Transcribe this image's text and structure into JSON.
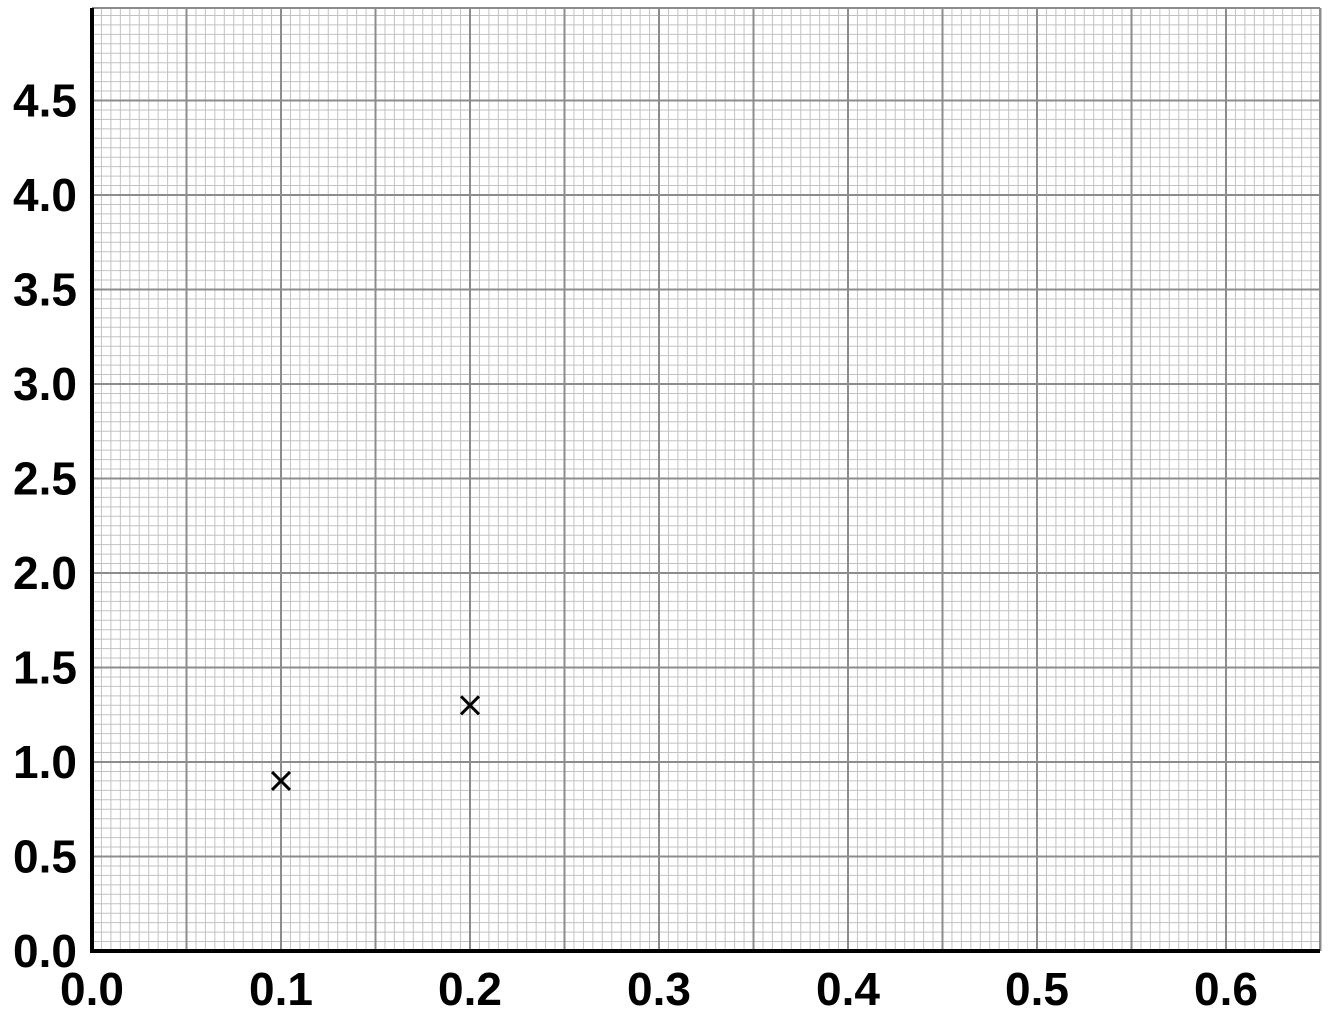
{
  "chart_data": {
    "type": "scatter",
    "title": "",
    "xlabel": "",
    "ylabel": "",
    "xlim": [
      0.0,
      0.65
    ],
    "ylim": [
      0.0,
      5.0
    ],
    "x_ticks": [
      "0.0",
      "0.1",
      "0.2",
      "0.3",
      "0.4",
      "0.5",
      "0.6"
    ],
    "y_ticks": [
      "0.0",
      "0.5",
      "1.0",
      "1.5",
      "2.0",
      "2.5",
      "3.0",
      "3.5",
      "4.0",
      "4.5"
    ],
    "grid": true,
    "marker": "x",
    "points": [
      {
        "x": 0.1,
        "y": 0.9
      },
      {
        "x": 0.2,
        "y": 1.3
      }
    ],
    "colors": {
      "marker": "#000000",
      "axis": "#000000",
      "grid_major": "#8c8c8c",
      "grid_minor": "#c2c2c2"
    }
  }
}
